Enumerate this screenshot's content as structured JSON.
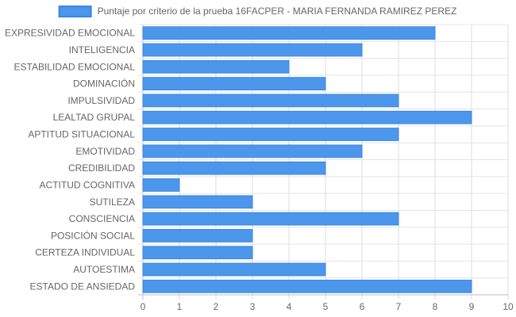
{
  "chart_data": {
    "type": "bar",
    "orientation": "horizontal",
    "categories": [
      "EXPRESIVIDAD EMOCIONAL",
      "INTELIGENCIA",
      "ESTABILIDAD EMOCIONAL",
      "DOMINACIÓN",
      "IMPULSIVIDAD",
      "LEALTAD GRUPAL",
      "APTITUD SITUACIONAL",
      "EMOTIVIDAD",
      "CREDIBILIDAD",
      "ACTITUD COGNITIVA",
      "SUTILEZA",
      "CONSCIENCIA",
      "POSICIÓN SOCIAL",
      "CERTEZA INDIVIDUAL",
      "AUTOESTIMA",
      "ESTADO DE ANSIEDAD"
    ],
    "series": [
      {
        "name": "Puntaje por criterio de la prueba 16FACPER - MARIA FERNANDA RAMIREZ PEREZ",
        "values": [
          8,
          6,
          4,
          5,
          7,
          9,
          7,
          6,
          5,
          1,
          3,
          7,
          3,
          3,
          5,
          9
        ],
        "color": "#4c97ec",
        "border_color": "#3a86e0"
      }
    ],
    "x_ticks": [
      "0",
      "1",
      "2",
      "3",
      "4",
      "5",
      "6",
      "7",
      "8",
      "9",
      "10"
    ],
    "xlim": [
      0,
      10
    ],
    "grid": true,
    "legend_position": "top"
  }
}
